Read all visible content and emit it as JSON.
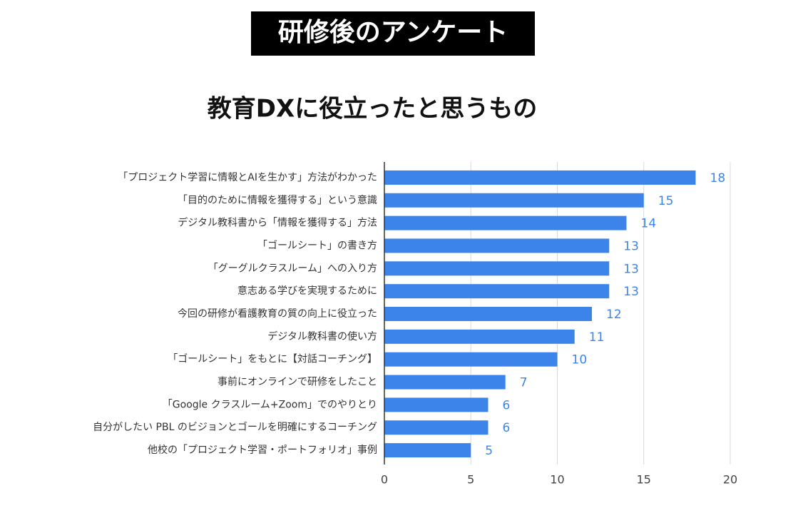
{
  "header": {
    "title": "研修後のアンケート"
  },
  "chart_data": {
    "type": "bar",
    "orientation": "horizontal",
    "title": "教育DXに役立ったと思うもの",
    "categories": [
      "「プロジェクト学習に情報とAIを生かす」方法がわかった",
      "「目的のために情報を獲得する」という意識",
      "デジタル教科書から「情報を獲得する」方法",
      "「ゴールシート」の書き方",
      "「グーグルクラスルーム」への入り方",
      "意志ある学びを実現するために",
      "今回の研修が看護教育の質の向上に役立った",
      "デジタル教科書の使い方",
      "「ゴールシート」をもとに【対話コーチング】",
      "事前にオンラインで研修をしたこと",
      "「Google クラスルーム+Zoom」でのやりとり",
      "自分がしたい PBL のビジョンとゴールを明確にするコーチング",
      "他校の「プロジェクト学習・ポートフォリオ」事例"
    ],
    "values": [
      18,
      15,
      14,
      13,
      13,
      13,
      12,
      11,
      10,
      7,
      6,
      6,
      5
    ],
    "color": "#3d84ea",
    "xlim": [
      0,
      20
    ],
    "xticks": [
      0,
      5,
      10,
      15,
      20
    ],
    "grid": true
  }
}
